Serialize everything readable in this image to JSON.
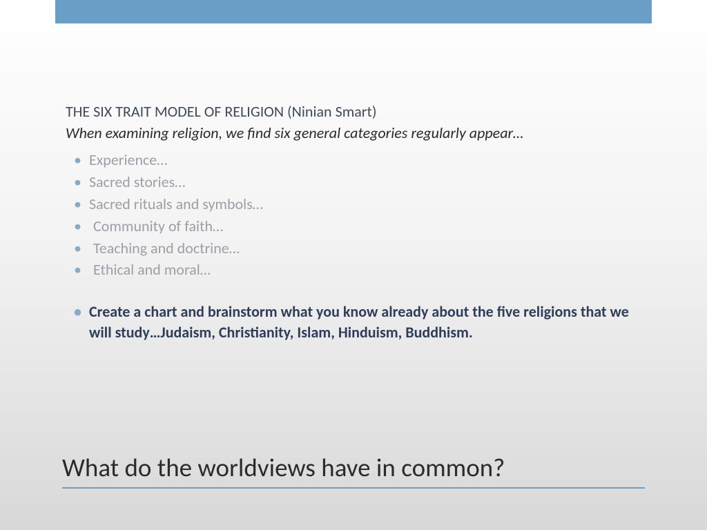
{
  "colors": {
    "accent_bar": "#6b9ec6",
    "heading": "#3f4a5a",
    "subheading": "#2a2a2a",
    "list_text": "#9aa0a6",
    "bullet": "#8aa9c2",
    "bold_text": "#2e3d5a",
    "title": "#2b2b2b",
    "bg_top": "#ffffff",
    "bg_bottom": "#d8d8d8"
  },
  "typography": {
    "body_fontsize": 22,
    "title_fontsize": 37,
    "font_family": "Calibri"
  },
  "slide": {
    "heading": "THE SIX TRAIT MODEL OF RELIGION (Ninian Smart)",
    "subheading": "When examining religion, we find six general categories regularly appear…",
    "items": [
      "Experience…",
      "Sacred stories…",
      "Sacred rituals and symbols…",
      "Community of faith…",
      "Teaching and doctrine…",
      "Ethical and moral…"
    ],
    "bold_item": "Create a chart and brainstorm what you know already about the five religions that we will study…Judaism, Christianity, Islam, Hinduism, Buddhism.",
    "title": "What do the worldviews have in common?"
  }
}
